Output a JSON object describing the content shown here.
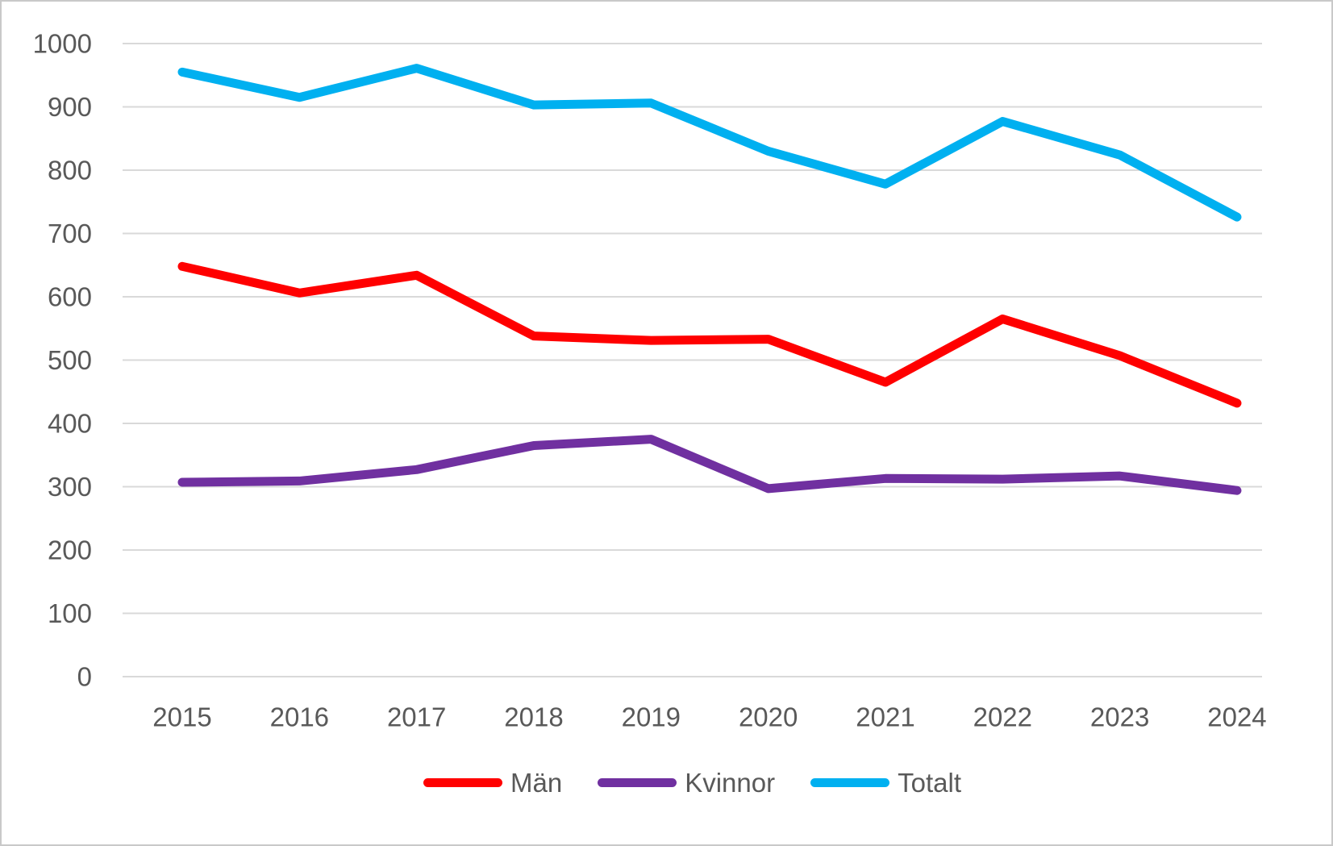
{
  "chart_data": {
    "type": "line",
    "title": "",
    "xlabel": "",
    "ylabel": "",
    "categories": [
      "2015",
      "2016",
      "2017",
      "2018",
      "2019",
      "2020",
      "2021",
      "2022",
      "2023",
      "2024"
    ],
    "series": [
      {
        "name": "Män",
        "color": "#FF0000",
        "values": [
          648,
          606,
          634,
          538,
          531,
          533,
          465,
          565,
          507,
          432
        ]
      },
      {
        "name": "Kvinnor",
        "color": "#7030A0",
        "values": [
          307,
          309,
          327,
          365,
          375,
          297,
          313,
          312,
          317,
          294
        ]
      },
      {
        "name": "Totalt",
        "color": "#00B0F0",
        "values": [
          955,
          915,
          961,
          903,
          906,
          830,
          778,
          877,
          824,
          726
        ]
      }
    ],
    "ylim": [
      0,
      1000
    ],
    "ytick_step": 100,
    "yticks": [
      "0",
      "100",
      "200",
      "300",
      "400",
      "500",
      "600",
      "700",
      "800",
      "900",
      "1000"
    ],
    "grid": "horizontal-only",
    "gridline_color": "#D9D9D9",
    "axis_text_color": "#595959",
    "legend_position": "bottom-center"
  }
}
